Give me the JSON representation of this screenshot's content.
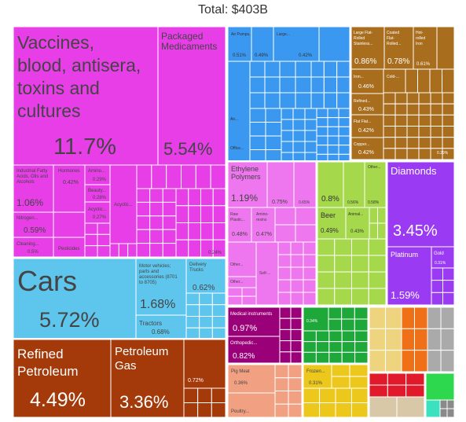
{
  "title": "Total: $403B",
  "chart_data": {
    "type": "treemap",
    "title": "Total: $403B",
    "colors": {
      "chemical": "#e83ee8",
      "transport": "#5ec6ec",
      "mineral": "#a43a0a",
      "machines": "#3a98f0",
      "metals": "#a86e1e",
      "plastics": "#ee76ee",
      "vegetable": "#a6d84c",
      "precious": "#9a3af2",
      "instruments": "#9a0078",
      "textiles": "#1ea83a",
      "animal": "#f2a082",
      "foodstuffs": "#ecc81c",
      "paper": "#eed47e",
      "footwear": "#f07018",
      "misc": "#aaaaaa",
      "other_red": "#e01a2a",
      "green2": "#2ed84e",
      "teal": "#3ce2c0",
      "stone": "#d8c8a8",
      "weapons": "#8a8a8a"
    },
    "tiles": [
      {
        "label": "Vaccines, blood, antisera, toxins and cultures",
        "value": "11.7%",
        "group": "chemical"
      },
      {
        "label": "Packaged Medicaments",
        "value": "5.54%",
        "group": "chemical"
      },
      {
        "label": "Industrial Fatty Acids, Oils and Alcohols",
        "value": "1.06%",
        "group": "chemical"
      },
      {
        "label": "Hormones",
        "value": "0.42%",
        "group": "chemical"
      },
      {
        "label": "Amino...",
        "value": "0.29%",
        "group": "chemical"
      },
      {
        "label": "Beauty...",
        "value": "0.28%",
        "group": "chemical"
      },
      {
        "label": "Acyclic...",
        "value": "0.27%",
        "group": "chemical"
      },
      {
        "label": "Acyclic...",
        "value": "",
        "group": "chemical"
      },
      {
        "label": "Nitrogen...",
        "value": "0.59%",
        "group": "chemical"
      },
      {
        "label": "Cleaning...",
        "value": "0.5%",
        "group": "chemical"
      },
      {
        "label": "Pesticides",
        "value": "",
        "group": "chemical"
      },
      {
        "label": "",
        "value": "0.24%",
        "group": "chemical"
      },
      {
        "label": "Cars",
        "value": "5.72%",
        "group": "transport"
      },
      {
        "label": "Motor vehicles; parts and accessories (8701 to 8705)",
        "value": "1.68%",
        "group": "transport"
      },
      {
        "label": "Delivery Trucks",
        "value": "0.62%",
        "group": "transport"
      },
      {
        "label": "Tractors",
        "value": "0.68%",
        "group": "transport"
      },
      {
        "label": "Refined Petroleum",
        "value": "4.49%",
        "group": "mineral"
      },
      {
        "label": "Petroleum Gas",
        "value": "3.36%",
        "group": "mineral"
      },
      {
        "label": "",
        "value": "0.72%",
        "group": "mineral"
      },
      {
        "label": "Air Pumps...",
        "value": "0.51%",
        "group": "machines"
      },
      {
        "label": "",
        "value": "0.49%",
        "group": "machines"
      },
      {
        "label": "Large...",
        "value": "0.42%",
        "group": "machines"
      },
      {
        "label": "Air...",
        "value": "",
        "group": "machines"
      },
      {
        "label": "Office...",
        "value": "",
        "group": "machines"
      },
      {
        "label": "Large Flat-Rolled Stainless...",
        "value": "0.86%",
        "group": "metals"
      },
      {
        "label": "Coated Flat-Rolled...",
        "value": "0.78%",
        "group": "metals"
      },
      {
        "label": "Hot-Rolled Iron",
        "value": "0.61%",
        "group": "metals"
      },
      {
        "label": "Iron...",
        "value": "0.46%",
        "group": "metals"
      },
      {
        "label": "Cold-...",
        "value": "",
        "group": "metals"
      },
      {
        "label": "Refined...",
        "value": "0.43%",
        "group": "metals"
      },
      {
        "label": "Flat Flat...",
        "value": "0.42%",
        "group": "metals"
      },
      {
        "label": "Copper...",
        "value": "0.42%",
        "group": "metals"
      },
      {
        "label": "",
        "value": "0.29%",
        "group": "metals"
      },
      {
        "label": "Ethylene Polymers",
        "value": "1.19%",
        "group": "plastics"
      },
      {
        "label": "",
        "value": "0.75%",
        "group": "plastics"
      },
      {
        "label": "",
        "value": "0.65%",
        "group": "plastics"
      },
      {
        "label": "Raw Plastic...",
        "value": "0.48%",
        "group": "plastics"
      },
      {
        "label": "Amino-resins",
        "value": "0.47%",
        "group": "plastics"
      },
      {
        "label": "Other...",
        "value": "",
        "group": "plastics"
      },
      {
        "label": "Self-...",
        "value": "",
        "group": "plastics"
      },
      {
        "label": "Other...",
        "value": "",
        "group": "plastics"
      },
      {
        "label": "",
        "value": "0.8%",
        "group": "vegetable"
      },
      {
        "label": "",
        "value": "0.56%",
        "group": "vegetable"
      },
      {
        "label": "Other...",
        "value": "0.58%",
        "group": "vegetable"
      },
      {
        "label": "Beer",
        "value": "0.49%",
        "group": "vegetable"
      },
      {
        "label": "Animal...",
        "value": "0.43%",
        "group": "vegetable"
      },
      {
        "label": "Diamonds",
        "value": "3.45%",
        "group": "precious"
      },
      {
        "label": "Platinum",
        "value": "1.59%",
        "group": "precious"
      },
      {
        "label": "Gold",
        "value": "0.31%",
        "group": "precious"
      },
      {
        "label": "Medical instruments",
        "value": "0.97%",
        "group": "instruments"
      },
      {
        "label": "Orthopedic...",
        "value": "0.82%",
        "group": "instruments"
      },
      {
        "label": "",
        "value": "0.34%",
        "group": "textiles"
      },
      {
        "label": "Pig Meat",
        "value": "0.36%",
        "group": "animal"
      },
      {
        "label": "Poultry...",
        "value": "",
        "group": "animal"
      },
      {
        "label": "Frozen...",
        "value": "0.31%",
        "group": "foodstuffs"
      }
    ]
  }
}
